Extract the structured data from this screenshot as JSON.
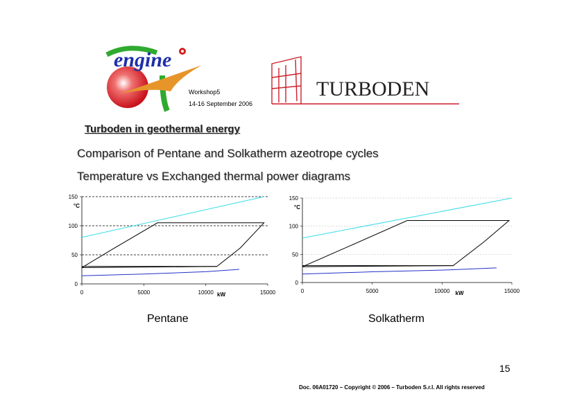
{
  "header": {
    "engine_logo": {
      "text": "engine",
      "colors": {
        "text": "#1f2fa8",
        "sphere": "#e3232b",
        "arc": "#2faa2f",
        "swoosh": "#e7952a",
        "gear": "#d62020"
      }
    },
    "workshop_name": "Workshop5",
    "workshop_dates": "14-16 September 2006",
    "turboden_logo": {
      "text": "TURBODEN",
      "color": "#cc1f2a"
    }
  },
  "slide": {
    "title": "Turboden in geothermal energy",
    "subtitle_1": "Comparison of Pentane and Solkatherm azeotrope cycles",
    "subtitle_2": "Temperature vs Exchanged thermal power diagrams"
  },
  "chart_data": [
    {
      "type": "line",
      "caption": "Pentane",
      "xlabel": "kW",
      "ylabel": "°C",
      "xlim": [
        0,
        15000
      ],
      "ylim": [
        0,
        150
      ],
      "x_ticks": [
        0,
        5000,
        10000,
        15000
      ],
      "y_ticks": [
        0,
        50,
        100,
        150
      ],
      "grid_style": "dashed",
      "series": [
        {
          "color": "#33dde8",
          "x": [
            0,
            14700
          ],
          "y": [
            80,
            150
          ]
        },
        {
          "color": "#000000",
          "x": [
            0,
            2500,
            6100,
            14700,
            12800,
            10900,
            0
          ],
          "y": [
            28,
            60,
            105,
            105,
            62,
            30,
            28
          ]
        },
        {
          "color": "#000000",
          "x": [
            0,
            10900
          ],
          "y": [
            30,
            30
          ]
        },
        {
          "color": "#2230c8",
          "x": [
            0,
            5000,
            10000,
            12700
          ],
          "y": [
            14,
            17,
            21,
            25
          ]
        }
      ]
    },
    {
      "type": "line",
      "caption": "Solkatherm",
      "xlabel": "kW",
      "ylabel": "°C",
      "xlim": [
        0,
        15000
      ],
      "ylim": [
        0,
        150
      ],
      "x_ticks": [
        0,
        5000,
        10000,
        15000
      ],
      "y_ticks": [
        0,
        50,
        100,
        150
      ],
      "grid_style": "light",
      "series": [
        {
          "color": "#33dde8",
          "x": [
            0,
            15000
          ],
          "y": [
            79,
            150
          ]
        },
        {
          "color": "#000000",
          "x": [
            0,
            3400,
            7500,
            14800,
            13000,
            10800,
            0
          ],
          "y": [
            28,
            65,
            110,
            110,
            72,
            30,
            28
          ]
        },
        {
          "color": "#000000",
          "x": [
            0,
            10800
          ],
          "y": [
            30,
            30
          ]
        },
        {
          "color": "#2230c8",
          "x": [
            0,
            5000,
            10000,
            13900
          ],
          "y": [
            15,
            19,
            22,
            26
          ]
        }
      ]
    }
  ],
  "footer": {
    "page_number": "15",
    "copyright": "Doc. 06A01720 – Copyright © 2006 – Turboden S.r.l. All rights reserved"
  }
}
